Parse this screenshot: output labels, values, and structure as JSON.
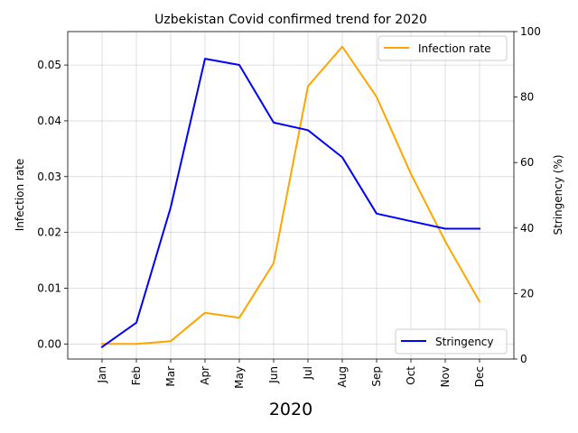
{
  "chart_data": {
    "type": "line",
    "title": "Uzbekistan Covid confirmed trend for 2020",
    "xlabel": "2020",
    "ylabel_left": "Infection rate",
    "ylabel_right": "Stringency (%)",
    "categories": [
      "Jan",
      "Feb",
      "Mar",
      "Apr",
      "May",
      "Jun",
      "Jul",
      "Aug",
      "Sep",
      "Oct",
      "Nov",
      "Dec"
    ],
    "left_axis": {
      "ylim": [
        -0.0027,
        0.056
      ],
      "ticks": [
        "0.00",
        "0.01",
        "0.02",
        "0.03",
        "0.04",
        "0.05"
      ]
    },
    "right_axis": {
      "ylim": [
        0,
        100
      ],
      "ticks": [
        "0",
        "20",
        "40",
        "60",
        "80",
        "100"
      ]
    },
    "grid": true,
    "series": [
      {
        "name": "Infection rate",
        "axis": "left",
        "color": "#ffa500",
        "legend_position": "upper right",
        "values": [
          0.0,
          0.0,
          0.0005,
          0.0056,
          0.0047,
          0.0145,
          0.0462,
          0.0533,
          0.0443,
          0.0305,
          0.0184,
          0.0076
        ]
      },
      {
        "name": "Stringency",
        "axis": "right",
        "color": "#0000ff",
        "legend_position": "lower right",
        "values": [
          3.7,
          11.1,
          46.3,
          91.7,
          89.8,
          72.2,
          69.9,
          61.6,
          44.4,
          42.1,
          39.8,
          39.8
        ]
      }
    ]
  }
}
